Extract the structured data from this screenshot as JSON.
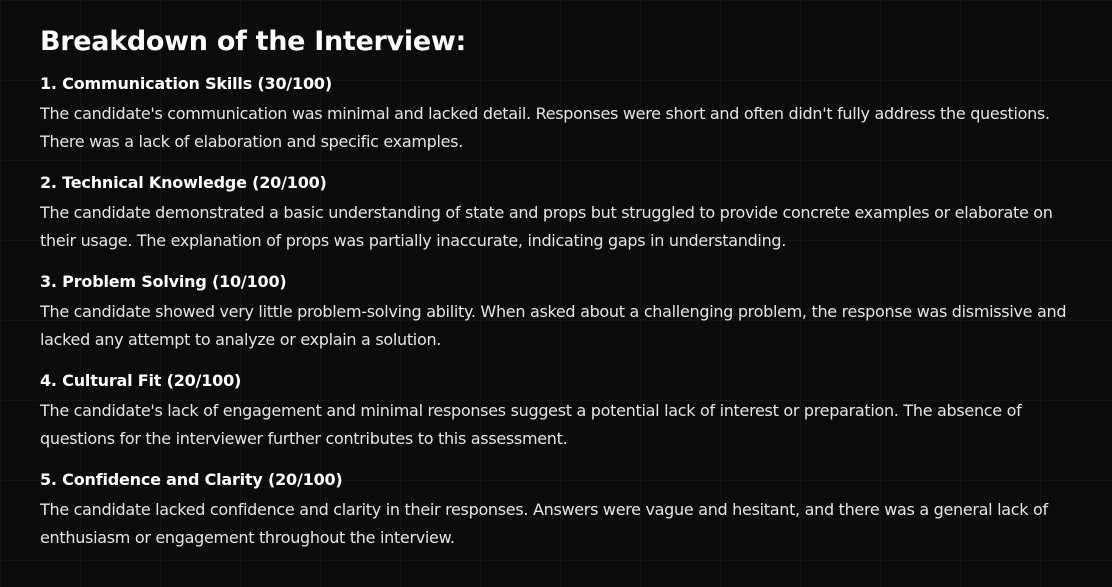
{
  "heading": "Breakdown of the Interview:",
  "sections": [
    {
      "title": "1. Communication Skills (30/100)",
      "body": "The candidate's communication was minimal and lacked detail. Responses were short and often didn't fully address the questions. There was a lack of elaboration and specific examples."
    },
    {
      "title": "2. Technical Knowledge (20/100)",
      "body": "The candidate demonstrated a basic understanding of state and props but struggled to provide concrete examples or elaborate on their usage. The explanation of props was partially inaccurate, indicating gaps in understanding."
    },
    {
      "title": "3. Problem Solving (10/100)",
      "body": "The candidate showed very little problem-solving ability. When asked about a challenging problem, the response was dismissive and lacked any attempt to analyze or explain a solution."
    },
    {
      "title": "4. Cultural Fit (20/100)",
      "body": "The candidate's lack of engagement and minimal responses suggest a potential lack of interest or preparation. The absence of questions for the interviewer further contributes to this assessment."
    },
    {
      "title": "5. Confidence and Clarity (20/100)",
      "body": "The candidate lacked confidence and clarity in their responses. Answers were vague and hesitant, and there was a general lack of enthusiasm or engagement throughout the interview."
    }
  ]
}
